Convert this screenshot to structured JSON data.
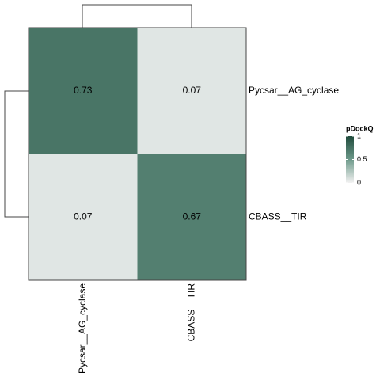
{
  "chart_data": {
    "type": "heatmap",
    "rows": [
      "Pycsar__AG_cyclase",
      "CBASS__TIR"
    ],
    "columns": [
      "Pycsar__AG_cyclase",
      "CBASS__TIR"
    ],
    "values": [
      [
        0.73,
        0.07
      ],
      [
        0.07,
        0.67
      ]
    ],
    "legend_title": "pDockQ",
    "clim": [
      0,
      1
    ],
    "cticks": [
      0,
      0.5,
      1
    ],
    "colors": [
      "#f2f2f2",
      "#6e9a8b",
      "#1e4a3b"
    ]
  }
}
